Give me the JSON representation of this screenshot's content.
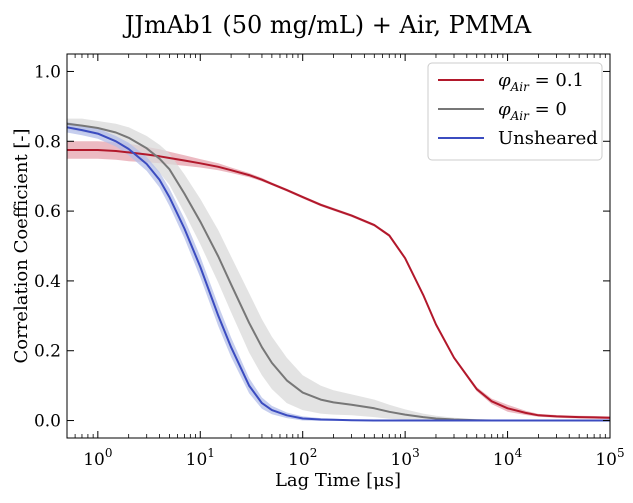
{
  "chart_data": {
    "type": "line",
    "title": "JJmAb1 (50 mg/mL) + Air, PMMA",
    "xlabel": "Lag Time [μs]",
    "ylabel": "Correlation Coefficient [-]",
    "xscale": "log",
    "xlim": [
      0.5,
      100000
    ],
    "ylim": [
      -0.05,
      1.05
    ],
    "xticks": [
      1,
      10,
      100,
      1000,
      10000,
      100000
    ],
    "xtick_labels": [
      {
        "base": "10",
        "exp": "0"
      },
      {
        "base": "10",
        "exp": "1"
      },
      {
        "base": "10",
        "exp": "2"
      },
      {
        "base": "10",
        "exp": "3"
      },
      {
        "base": "10",
        "exp": "4"
      },
      {
        "base": "10",
        "exp": "5"
      }
    ],
    "yticks": [
      0.0,
      0.2,
      0.4,
      0.6,
      0.8,
      1.0
    ],
    "ytick_labels": [
      "0.0",
      "0.2",
      "0.4",
      "0.6",
      "0.8",
      "1.0"
    ],
    "grid": false,
    "legend_position": "top-right",
    "x": [
      0.5,
      0.7,
      1,
      1.5,
      2,
      3,
      4,
      5,
      7,
      10,
      15,
      20,
      30,
      40,
      50,
      70,
      100,
      150,
      200,
      300,
      500,
      700,
      1000,
      1500,
      2000,
      3000,
      5000,
      7000,
      10000,
      15000,
      20000,
      30000,
      50000,
      70000,
      100000
    ],
    "series": [
      {
        "name": "φAir = 0.1",
        "legend_symbol": "φ",
        "legend_sub": "Air",
        "legend_value": " = 0.1",
        "color": "#b2182b",
        "band_color": "#e6a3ad",
        "values": [
          0.775,
          0.775,
          0.775,
          0.772,
          0.768,
          0.762,
          0.757,
          0.752,
          0.745,
          0.737,
          0.727,
          0.717,
          0.703,
          0.69,
          0.678,
          0.66,
          0.64,
          0.618,
          0.605,
          0.587,
          0.56,
          0.53,
          0.465,
          0.36,
          0.275,
          0.18,
          0.09,
          0.055,
          0.035,
          0.022,
          0.015,
          0.012,
          0.01,
          0.009,
          0.008
        ],
        "band": [
          0.025,
          0.025,
          0.025,
          0.025,
          0.025,
          0.022,
          0.02,
          0.018,
          0.015,
          0.012,
          0.01,
          0.008,
          0.006,
          0.005,
          0.004,
          0.004,
          0.004,
          0.004,
          0.004,
          0.004,
          0.004,
          0.004,
          0.004,
          0.004,
          0.004,
          0.004,
          0.006,
          0.008,
          0.01,
          0.006,
          0.004,
          0.004,
          0.004,
          0.004,
          0.004
        ]
      },
      {
        "name": "φAir = 0",
        "legend_symbol": "φ",
        "legend_sub": "Air",
        "legend_value": " = 0",
        "color": "#777777",
        "band_color": "#d9d9d9",
        "values": [
          0.85,
          0.845,
          0.838,
          0.825,
          0.81,
          0.78,
          0.75,
          0.72,
          0.65,
          0.57,
          0.47,
          0.39,
          0.28,
          0.21,
          0.165,
          0.115,
          0.08,
          0.06,
          0.052,
          0.045,
          0.035,
          0.025,
          0.017,
          0.01,
          0.006,
          0.003,
          0.001,
          0.0,
          0.0,
          0.0,
          0.0,
          0.0,
          0.0,
          0.0,
          0.0
        ],
        "band": [
          0.015,
          0.02,
          0.02,
          0.025,
          0.03,
          0.035,
          0.04,
          0.045,
          0.055,
          0.065,
          0.075,
          0.08,
          0.085,
          0.08,
          0.075,
          0.065,
          0.05,
          0.04,
          0.035,
          0.03,
          0.025,
          0.02,
          0.015,
          0.01,
          0.008,
          0.005,
          0.003,
          0.002,
          0.002,
          0.002,
          0.002,
          0.002,
          0.002,
          0.002,
          0.002
        ]
      },
      {
        "name": "Unsheared",
        "color": "#3b4cc0",
        "band_color": "#b3bde8",
        "values": [
          0.84,
          0.832,
          0.822,
          0.8,
          0.778,
          0.735,
          0.69,
          0.64,
          0.55,
          0.44,
          0.3,
          0.21,
          0.1,
          0.05,
          0.03,
          0.015,
          0.006,
          0.003,
          0.002,
          0.001,
          0.0,
          0.0,
          0.0,
          0.0,
          0.0,
          0.0,
          0.0,
          0.0,
          0.0,
          0.0,
          0.0,
          0.0,
          0.0,
          0.0,
          0.0
        ],
        "band": [
          0.015,
          0.015,
          0.015,
          0.015,
          0.018,
          0.02,
          0.022,
          0.025,
          0.028,
          0.03,
          0.03,
          0.028,
          0.022,
          0.016,
          0.012,
          0.008,
          0.006,
          0.004,
          0.003,
          0.002,
          0.002,
          0.002,
          0.002,
          0.002,
          0.002,
          0.002,
          0.002,
          0.002,
          0.002,
          0.002,
          0.002,
          0.002,
          0.002,
          0.002,
          0.002
        ]
      }
    ]
  }
}
